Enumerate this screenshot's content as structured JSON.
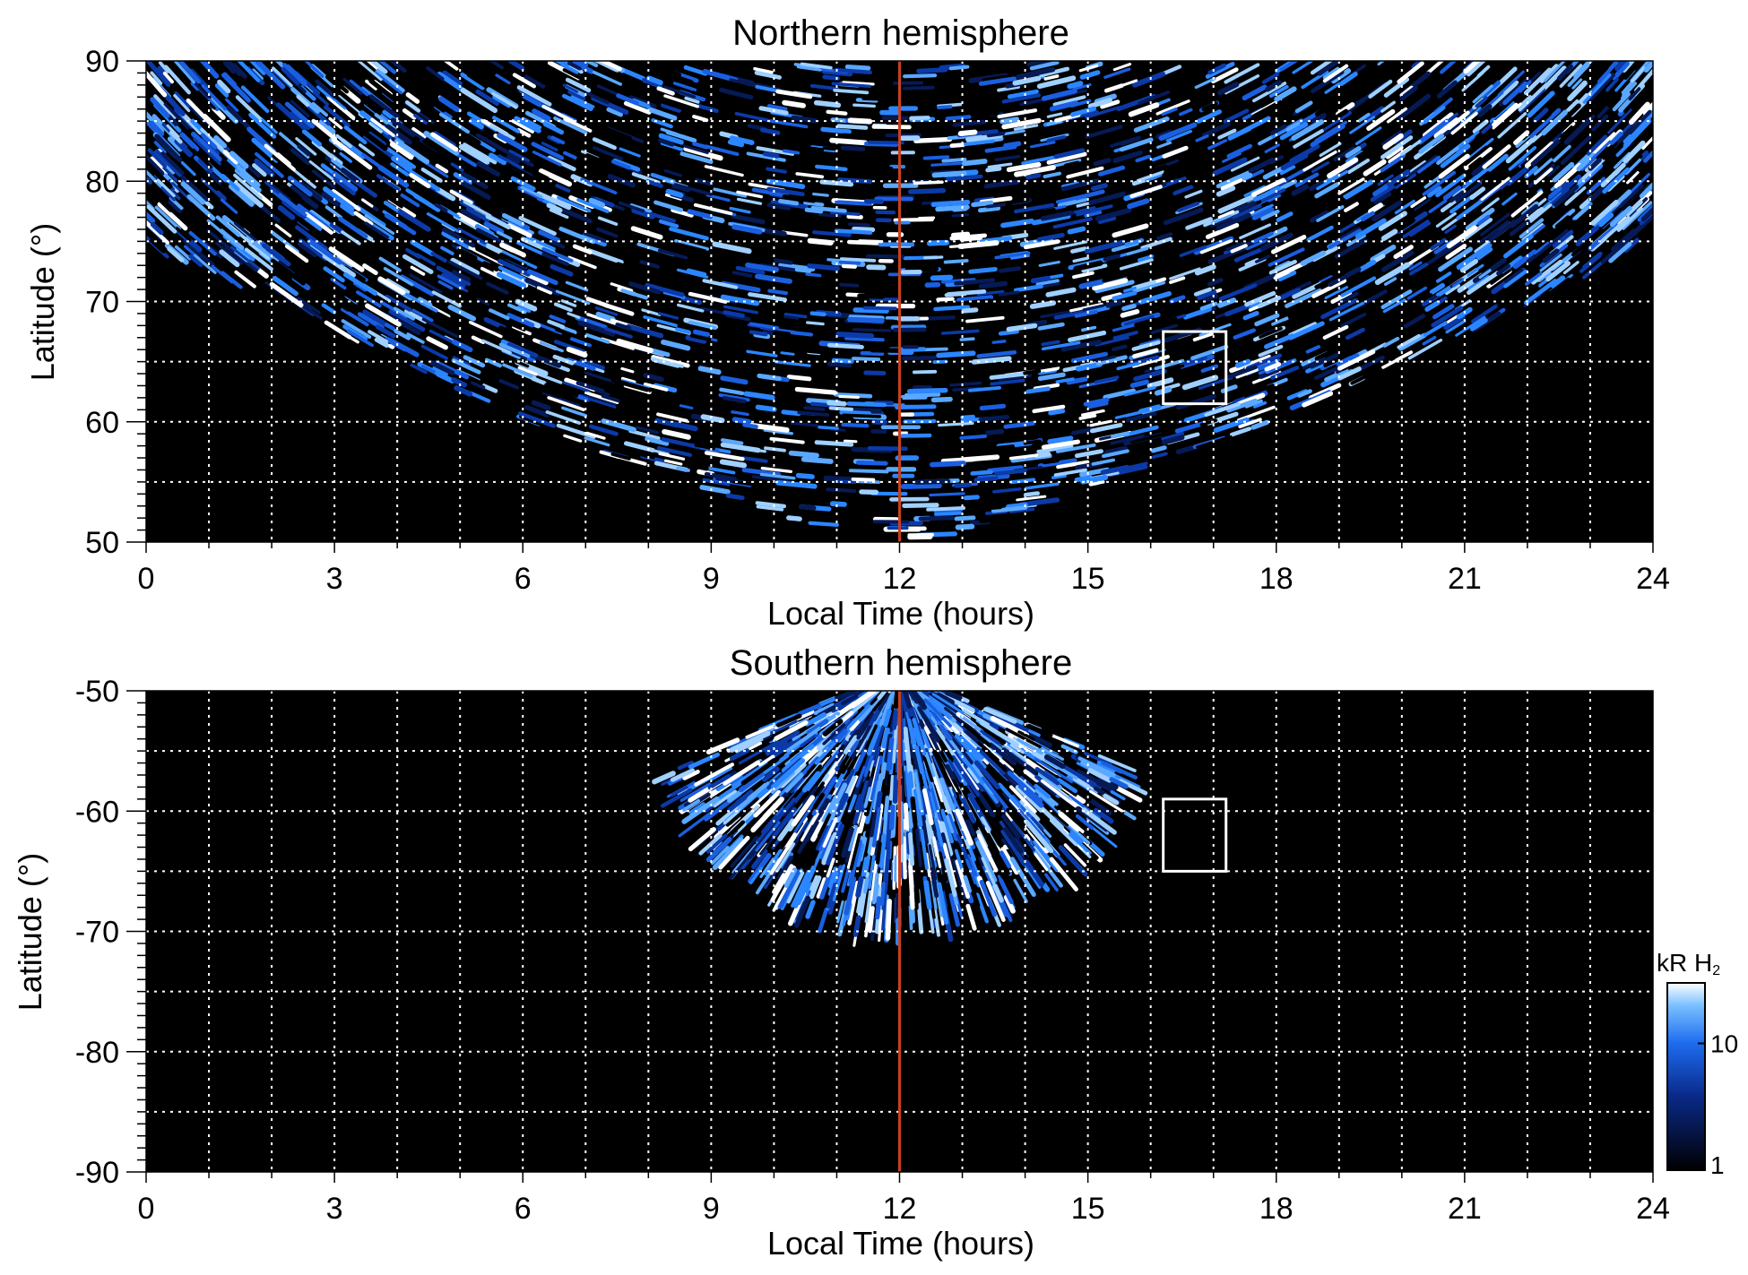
{
  "chart_data": [
    {
      "type": "heatmap",
      "title": "Northern hemisphere",
      "xlabel": "Local Time (hours)",
      "ylabel": "Latitude (°)",
      "xlim": [
        0,
        24
      ],
      "ylim": [
        50,
        90
      ],
      "x_ticks": [
        0,
        3,
        6,
        9,
        12,
        15,
        18,
        21,
        24
      ],
      "y_ticks": [
        50,
        60,
        70,
        80,
        90
      ],
      "grid": true,
      "colormap": "black-blue-white",
      "reference_line": {
        "x": 12,
        "color": "#c8401e"
      },
      "highlight_box": {
        "x": [
          16.2,
          17.2
        ],
        "y": [
          61.5,
          67.5
        ]
      }
    },
    {
      "type": "heatmap",
      "title": "Southern hemisphere",
      "xlabel": "Local Time (hours)",
      "ylabel": "Latitude (°)",
      "xlim": [
        0,
        24
      ],
      "ylim": [
        -90,
        -50
      ],
      "x_ticks": [
        0,
        3,
        6,
        9,
        12,
        15,
        18,
        21,
        24
      ],
      "y_ticks": [
        -90,
        -80,
        -70,
        -60,
        -50
      ],
      "grid": true,
      "colormap": "black-blue-white",
      "reference_line": {
        "x": 12,
        "color": "#c8401e"
      },
      "highlight_box": {
        "x": [
          16.2,
          17.2
        ],
        "y": [
          -65,
          -59
        ]
      }
    }
  ],
  "colorbar": {
    "label_main": "kR H",
    "label_sub": "2",
    "scale": "log",
    "range": [
      1,
      30
    ],
    "ticks": [
      1,
      10
    ],
    "tick_labels": [
      "1",
      "10"
    ]
  },
  "colors": {
    "background": "#000000",
    "accent": "#c8401e",
    "grid": "#ffffff"
  }
}
